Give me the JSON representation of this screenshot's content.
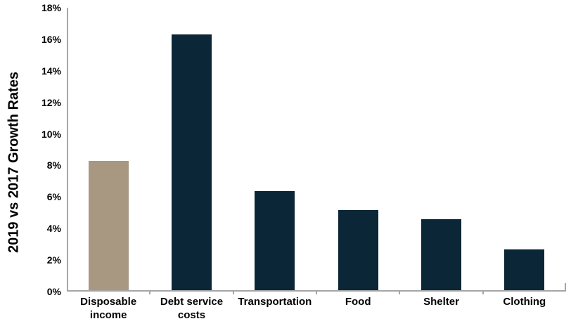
{
  "chart_data": {
    "type": "bar",
    "title": "",
    "ylabel": "2019 vs 2017 Growth Rates",
    "xlabel": "",
    "categories": [
      "Disposable\nincome",
      "Debt service\ncosts",
      "Transportation",
      "Food",
      "Shelter",
      "Clothing"
    ],
    "values": [
      8.2,
      16.2,
      6.3,
      5.1,
      4.5,
      2.6
    ],
    "bar_colors": [
      "#a89781",
      "#0a2637",
      "#0a2637",
      "#0a2637",
      "#0a2637",
      "#0a2637"
    ],
    "ylim": [
      0,
      18
    ],
    "ytick_step": 2,
    "ytick_suffix": "%",
    "grid": false,
    "legend": false,
    "colors": {
      "axis": "#a6a6a6",
      "text": "#000000",
      "background": "#ffffff",
      "highlight_bar": "#a89781",
      "default_bar": "#0a2637"
    }
  }
}
